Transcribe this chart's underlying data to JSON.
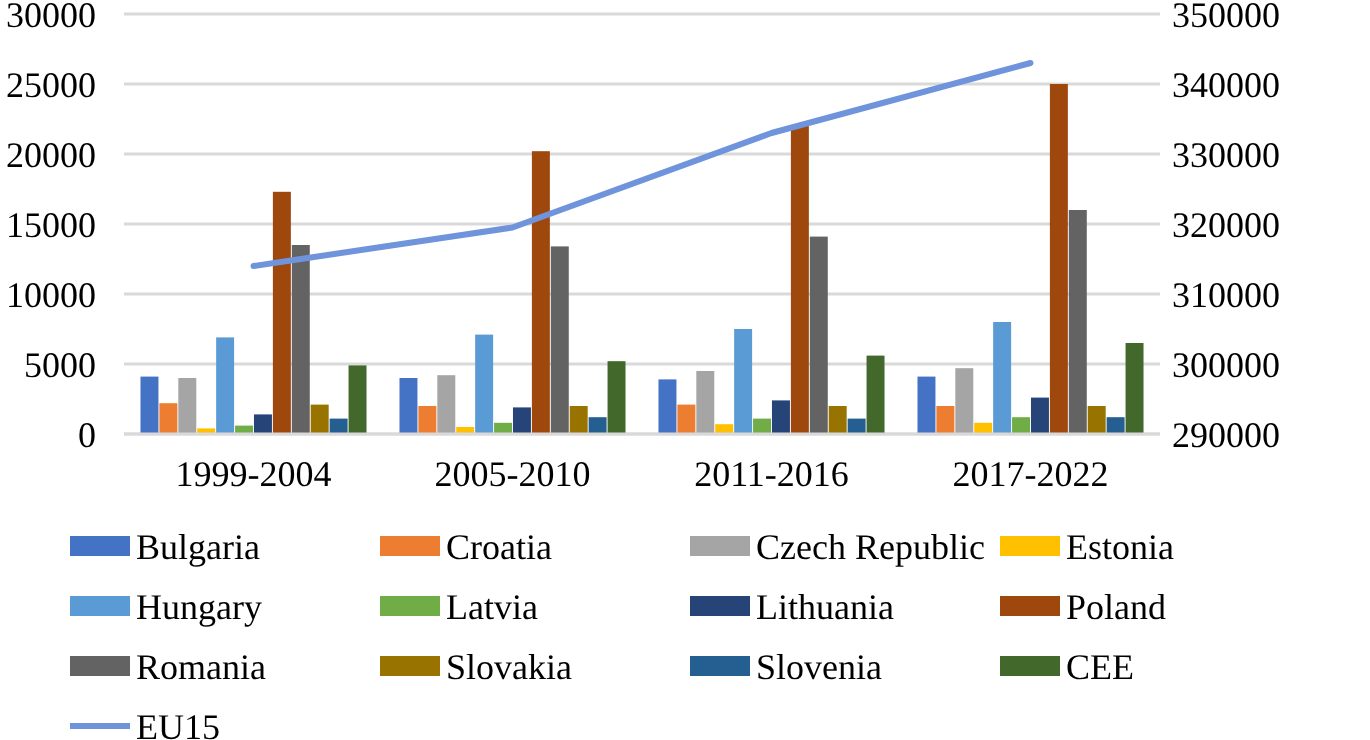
{
  "chart_data": {
    "type": "bar",
    "categories": [
      "1999-2004",
      "2005-2010",
      "2011-2016",
      "2017-2022"
    ],
    "ylim": [
      0,
      30000
    ],
    "yticks": [
      0,
      5000,
      10000,
      15000,
      20000,
      25000,
      30000
    ],
    "y2lim": [
      290000,
      350000
    ],
    "y2ticks": [
      290000,
      300000,
      310000,
      320000,
      330000,
      340000,
      350000
    ],
    "grid": "y",
    "legend": "bottom",
    "series": [
      {
        "name": "Bulgaria",
        "color": "#4472c4",
        "values": [
          4100,
          4000,
          3900,
          4100
        ]
      },
      {
        "name": "Croatia",
        "color": "#ed7d31",
        "values": [
          2200,
          2000,
          2100,
          2000
        ]
      },
      {
        "name": "Czech Republic",
        "color": "#a5a5a5",
        "values": [
          4000,
          4200,
          4500,
          4700
        ]
      },
      {
        "name": "Estonia",
        "color": "#ffc000",
        "values": [
          400,
          500,
          700,
          800
        ]
      },
      {
        "name": "Hungary",
        "color": "#5b9bd5",
        "values": [
          6900,
          7100,
          7500,
          8000
        ]
      },
      {
        "name": "Latvia",
        "color": "#70ad47",
        "values": [
          600,
          800,
          1100,
          1200
        ]
      },
      {
        "name": "Lithuania",
        "color": "#264478",
        "values": [
          1400,
          1900,
          2400,
          2600
        ]
      },
      {
        "name": "Poland",
        "color": "#9e480e",
        "values": [
          17300,
          20200,
          22000,
          25000
        ]
      },
      {
        "name": "Romania",
        "color": "#636363",
        "values": [
          13500,
          13400,
          14100,
          16000
        ]
      },
      {
        "name": "Slovakia",
        "color": "#997300",
        "values": [
          2100,
          2000,
          2000,
          2000
        ]
      },
      {
        "name": "Slovenia",
        "color": "#255e91",
        "values": [
          1100,
          1200,
          1100,
          1200
        ]
      },
      {
        "name": "CEE",
        "color": "#43682b",
        "values": [
          4900,
          5200,
          5600,
          6500
        ]
      },
      {
        "name": "EU15",
        "color": "#6f94dc",
        "type": "line",
        "axis": "y2",
        "values": [
          314000,
          319500,
          333000,
          343000
        ]
      }
    ]
  }
}
